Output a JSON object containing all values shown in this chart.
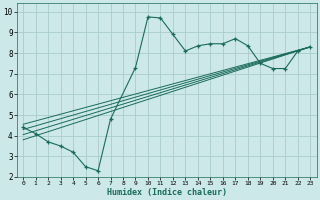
{
  "xlabel": "Humidex (Indice chaleur)",
  "bg_color": "#cce8e8",
  "line_color": "#1a6b5a",
  "grid_color": "#aacccc",
  "xlim": [
    -0.5,
    23.5
  ],
  "ylim": [
    2,
    10.4
  ],
  "xticks": [
    0,
    1,
    2,
    3,
    4,
    5,
    6,
    7,
    8,
    9,
    10,
    11,
    12,
    13,
    14,
    15,
    16,
    17,
    18,
    19,
    20,
    21,
    22,
    23
  ],
  "yticks": [
    2,
    3,
    4,
    5,
    6,
    7,
    8,
    9,
    10
  ],
  "main_x": [
    0,
    1,
    2,
    3,
    4,
    5,
    6,
    7,
    9,
    10,
    11,
    12,
    13,
    14,
    15,
    16,
    17,
    18,
    19,
    20,
    21,
    22,
    23
  ],
  "main_y": [
    4.4,
    4.1,
    3.7,
    3.5,
    3.2,
    2.5,
    2.3,
    4.8,
    7.3,
    9.75,
    9.7,
    8.9,
    8.1,
    8.35,
    8.45,
    8.45,
    8.7,
    8.35,
    7.5,
    7.25,
    7.25,
    8.1,
    8.3
  ],
  "bundle_lines": [
    {
      "x": [
        0,
        23
      ],
      "y": [
        3.8,
        8.3
      ]
    },
    {
      "x": [
        0,
        23
      ],
      "y": [
        4.05,
        8.3
      ]
    },
    {
      "x": [
        0,
        23
      ],
      "y": [
        4.3,
        8.3
      ]
    },
    {
      "x": [
        0,
        23
      ],
      "y": [
        4.55,
        8.3
      ]
    }
  ]
}
